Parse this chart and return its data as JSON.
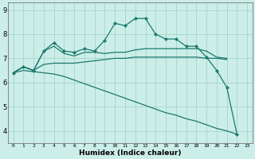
{
  "xlabel": "Humidex (Indice chaleur)",
  "bg_color": "#cceee8",
  "grid_color": "#aad8d0",
  "line_color": "#1a7a6e",
  "xlim": [
    -0.5,
    23.5
  ],
  "ylim": [
    3.5,
    9.3
  ],
  "xticks": [
    0,
    1,
    2,
    3,
    4,
    5,
    6,
    7,
    8,
    9,
    10,
    11,
    12,
    13,
    14,
    15,
    16,
    17,
    18,
    19,
    20,
    21,
    22,
    23
  ],
  "yticks": [
    4,
    5,
    6,
    7,
    8,
    9
  ],
  "series": [
    {
      "y": [
        6.4,
        6.65,
        6.5,
        7.3,
        7.65,
        7.3,
        7.25,
        7.4,
        7.3,
        7.75,
        8.45,
        8.35,
        8.65,
        8.65,
        8.0,
        7.8,
        7.8,
        7.5,
        7.5,
        7.05,
        6.5,
        5.8,
        3.85,
        null
      ],
      "marker": true
    },
    {
      "y": [
        6.4,
        6.65,
        6.5,
        7.3,
        7.5,
        7.2,
        7.1,
        7.25,
        7.25,
        7.2,
        7.25,
        7.25,
        7.35,
        7.4,
        7.4,
        7.4,
        7.4,
        7.4,
        7.4,
        7.3,
        7.05,
        7.0,
        null,
        null
      ],
      "marker": false
    },
    {
      "y": [
        6.4,
        6.65,
        6.5,
        6.75,
        6.8,
        6.8,
        6.8,
        6.85,
        6.9,
        6.95,
        7.0,
        7.0,
        7.05,
        7.05,
        7.05,
        7.05,
        7.05,
        7.05,
        7.05,
        7.0,
        7.0,
        6.95,
        null,
        null
      ],
      "marker": false
    },
    {
      "y": [
        6.4,
        6.5,
        6.45,
        6.4,
        6.35,
        6.25,
        6.1,
        5.95,
        5.8,
        5.65,
        5.5,
        5.35,
        5.2,
        5.05,
        4.9,
        4.75,
        4.65,
        4.5,
        4.4,
        4.25,
        4.1,
        4.0,
        3.85,
        null
      ],
      "marker": false
    }
  ]
}
